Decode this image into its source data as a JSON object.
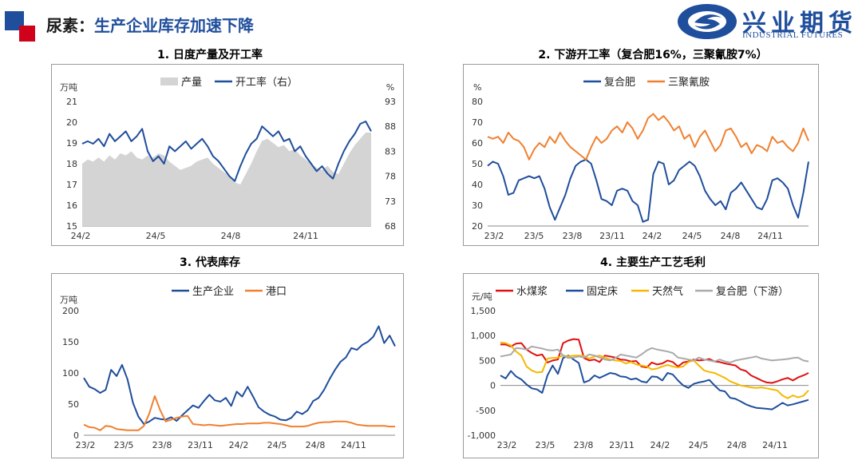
{
  "header": {
    "title_prefix": "尿素：",
    "title_main": "生产企业库存加速下降",
    "logo_cn": "兴业期货",
    "logo_en": "INDUSTRIAL FUTURES",
    "colors": {
      "brand_blue": "#1f4e9c",
      "brand_red": "#d0021b"
    }
  },
  "chart_data": [
    {
      "type": "area",
      "title": "1. 日度产量及开工率",
      "ylabel": "万吨",
      "y2label": "%",
      "ylim": [
        15,
        21
      ],
      "yticks": [
        "21",
        "20",
        "19",
        "18",
        "17",
        "16",
        "15"
      ],
      "y2lim": [
        68,
        93
      ],
      "y2ticks": [
        "93",
        "88",
        "83",
        "78",
        "73",
        "68"
      ],
      "xticks": [
        "24/2",
        "24/5",
        "24/8",
        "24/11"
      ],
      "legend": "top-center",
      "series": [
        {
          "name": "产量",
          "axis": "left",
          "kind": "area",
          "color": "#d4d4d4",
          "values": [
            18.0,
            18.2,
            18.1,
            18.3,
            18.1,
            18.4,
            18.2,
            18.5,
            18.4,
            18.6,
            18.3,
            18.2,
            18.4,
            18.3,
            18.5,
            18.4,
            18.1,
            17.9,
            17.7,
            17.8,
            17.9,
            18.1,
            18.2,
            18.3,
            18.0,
            17.8,
            17.6,
            17.4,
            17.1,
            17.0,
            17.5,
            18.0,
            18.6,
            19.1,
            19.2,
            19.0,
            18.8,
            18.9,
            18.6,
            18.7,
            18.4,
            18.2,
            18.0,
            17.8,
            17.7,
            17.9,
            17.6,
            17.5,
            18.0,
            18.5,
            18.9,
            19.2,
            19.5,
            19.5
          ]
        },
        {
          "name": "开工率（右）",
          "axis": "right",
          "kind": "line",
          "color": "#1f4e9c",
          "values": [
            84.5,
            85.0,
            84.5,
            85.5,
            84.0,
            86.5,
            85.0,
            86.0,
            87.0,
            85.0,
            86.0,
            87.5,
            83.0,
            81.0,
            82.0,
            80.5,
            84.0,
            83.0,
            84.0,
            85.0,
            83.5,
            84.5,
            85.5,
            84.0,
            82.0,
            81.0,
            79.5,
            78.0,
            77.0,
            80.0,
            82.5,
            84.5,
            85.5,
            88.0,
            87.0,
            86.0,
            87.0,
            85.0,
            85.5,
            83.0,
            84.0,
            82.0,
            80.5,
            79.0,
            80.0,
            78.5,
            77.5,
            80.5,
            83.0,
            85.0,
            86.5,
            88.5,
            89.0,
            87.0
          ]
        }
      ]
    },
    {
      "type": "line",
      "title": "2. 下游开工率（复合肥16%，三聚氰胺7%）",
      "ylabel": "%",
      "ylim": [
        20,
        80
      ],
      "yticks": [
        "80",
        "70",
        "60",
        "50",
        "40",
        "30",
        "20"
      ],
      "xticks": [
        "23/2",
        "23/5",
        "23/8",
        "23/11",
        "24/2",
        "24/5",
        "24/8",
        "24/11"
      ],
      "legend": "top-center",
      "series": [
        {
          "name": "复合肥",
          "color": "#1f4e9c",
          "values": [
            49,
            51,
            50,
            44,
            35,
            36,
            42,
            43,
            44,
            43,
            44,
            38,
            29,
            23,
            29,
            35,
            43,
            49,
            51,
            52,
            50,
            42,
            33,
            32,
            30,
            37,
            38,
            37,
            32,
            30,
            22,
            23,
            45,
            51,
            50,
            40,
            42,
            47,
            49,
            51,
            49,
            44,
            37,
            33,
            30,
            32,
            28,
            36,
            38,
            41,
            37,
            33,
            29,
            28,
            33,
            42,
            43,
            41,
            38,
            30,
            24,
            36,
            51
          ]
        },
        {
          "name": "三聚氰胺",
          "color": "#f08030",
          "values": [
            63,
            62,
            63,
            60,
            65,
            62,
            61,
            58,
            52,
            57,
            60,
            58,
            63,
            60,
            65,
            61,
            58,
            56,
            54,
            52,
            58,
            63,
            60,
            62,
            66,
            68,
            65,
            70,
            67,
            62,
            66,
            72,
            74,
            71,
            73,
            70,
            66,
            68,
            62,
            64,
            58,
            63,
            66,
            61,
            56,
            59,
            66,
            67,
            63,
            58,
            60,
            55,
            59,
            58,
            56,
            63,
            60,
            61,
            58,
            56,
            60,
            67,
            61
          ]
        }
      ]
    },
    {
      "type": "line",
      "title": "3. 代表库存",
      "ylabel": "万吨",
      "ylim": [
        0,
        200
      ],
      "yticks": [
        "200",
        "150",
        "100",
        "50",
        "0"
      ],
      "xticks": [
        "23/2",
        "23/5",
        "23/8",
        "23/11",
        "24/2",
        "24/5",
        "24/8",
        "24/11"
      ],
      "legend": "top-center",
      "series": [
        {
          "name": "生产企业",
          "color": "#1f4e9c",
          "values": [
            92,
            78,
            74,
            68,
            73,
            105,
            95,
            113,
            90,
            52,
            30,
            18,
            22,
            28,
            26,
            25,
            29,
            23,
            32,
            40,
            48,
            44,
            55,
            65,
            56,
            54,
            60,
            47,
            70,
            62,
            78,
            62,
            45,
            38,
            33,
            30,
            25,
            24,
            28,
            38,
            34,
            40,
            55,
            60,
            73,
            90,
            105,
            118,
            125,
            140,
            137,
            145,
            150,
            158,
            175,
            148,
            160,
            143
          ]
        },
        {
          "name": "港口",
          "color": "#f08030",
          "values": [
            17,
            13,
            12,
            8,
            15,
            14,
            10,
            9,
            8,
            8,
            8,
            15,
            35,
            63,
            40,
            22,
            25,
            28,
            30,
            31,
            18,
            17,
            16,
            17,
            16,
            15,
            16,
            17,
            18,
            18,
            19,
            19,
            19,
            20,
            20,
            19,
            18,
            16,
            14,
            14,
            14,
            15,
            18,
            20,
            21,
            21,
            22,
            22,
            22,
            20,
            17,
            16,
            15,
            15,
            15,
            15,
            14,
            14
          ]
        }
      ]
    },
    {
      "type": "line",
      "title": "4. 主要生产工艺毛利",
      "ylabel": "元/吨",
      "ylim": [
        -1000,
        1500
      ],
      "yticks": [
        "1,500",
        "1,000",
        "500",
        "0",
        "-500",
        "-1,000"
      ],
      "xticks": [
        "23/2",
        "23/5",
        "23/8",
        "23/11",
        "24/2",
        "24/5",
        "24/8",
        "24/11"
      ],
      "legend": "top-center",
      "series": [
        {
          "name": "水煤浆",
          "color": "#e01010",
          "values": [
            820,
            820,
            780,
            840,
            850,
            720,
            650,
            600,
            620,
            460,
            500,
            520,
            850,
            900,
            930,
            920,
            550,
            500,
            520,
            470,
            600,
            580,
            560,
            520,
            510,
            480,
            490,
            380,
            360,
            460,
            420,
            440,
            500,
            470,
            380,
            460,
            480,
            520,
            500,
            510,
            530,
            480,
            470,
            440,
            420,
            400,
            320,
            290,
            200,
            150,
            100,
            60,
            50,
            80,
            120,
            150,
            100,
            160,
            200,
            250
          ]
        },
        {
          "name": "固定床",
          "color": "#1f4e9c",
          "values": [
            200,
            140,
            290,
            180,
            120,
            20,
            -60,
            -80,
            -150,
            200,
            400,
            230,
            550,
            600,
            520,
            450,
            60,
            100,
            200,
            150,
            200,
            250,
            230,
            180,
            170,
            120,
            140,
            80,
            60,
            180,
            170,
            100,
            250,
            220,
            100,
            0,
            -50,
            30,
            60,
            80,
            110,
            0,
            -100,
            -120,
            -250,
            -270,
            -320,
            -380,
            -420,
            -450,
            -460,
            -470,
            -480,
            -420,
            -350,
            -400,
            -380,
            -350,
            -320,
            -290
          ]
        },
        {
          "name": "天然气",
          "color": "#f5b800",
          "values": [
            860,
            850,
            800,
            680,
            600,
            380,
            300,
            260,
            270,
            540,
            550,
            560,
            600,
            580,
            600,
            600,
            590,
            540,
            580,
            600,
            560,
            520,
            500,
            490,
            440,
            470,
            420,
            400,
            380,
            320,
            340,
            380,
            410,
            380,
            360,
            380,
            470,
            500,
            400,
            300,
            270,
            250,
            200,
            150,
            80,
            40,
            0,
            -20,
            -40,
            -50,
            -40,
            -60,
            -80,
            -100,
            -200,
            -260,
            -200,
            -240,
            -210,
            -100
          ]
        },
        {
          "name": "复合肥（下游）",
          "color": "#aaaaaa",
          "values": [
            580,
            600,
            620,
            750,
            740,
            720,
            780,
            760,
            740,
            710,
            700,
            720,
            600,
            550,
            560,
            580,
            560,
            620,
            600,
            560,
            520,
            500,
            550,
            620,
            600,
            580,
            560,
            620,
            700,
            750,
            720,
            700,
            680,
            650,
            560,
            540,
            520,
            500,
            560,
            520,
            500,
            480,
            520,
            480,
            460,
            500,
            520,
            540,
            560,
            580,
            540,
            520,
            500,
            510,
            520,
            530,
            550,
            560,
            500,
            480
          ]
        }
      ]
    }
  ]
}
